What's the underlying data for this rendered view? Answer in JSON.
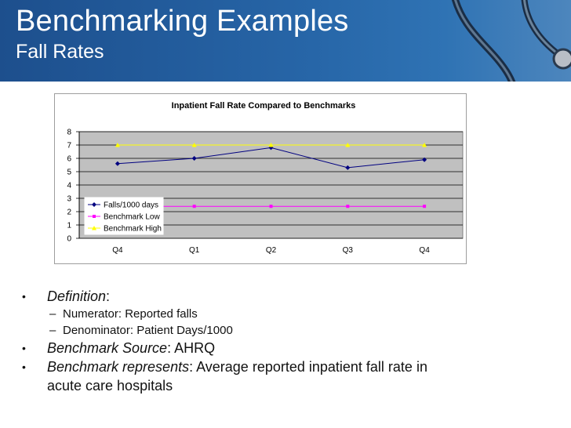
{
  "slide": {
    "title": "Benchmarking Examples",
    "subtitle": "Fall Rates"
  },
  "colors": {
    "header": "#2766a8",
    "plot_background": "#c0c0c0",
    "series_falls": "#000080",
    "series_low": "#ff00ff",
    "series_high": "#ffff00"
  },
  "chart_data": {
    "type": "line",
    "title": "Inpatient Fall Rate Compared to Benchmarks",
    "categories": [
      "Q4",
      "Q1",
      "Q2",
      "Q3",
      "Q4"
    ],
    "y_ticks": [
      "0",
      "1",
      "2",
      "3",
      "4",
      "5",
      "6",
      "7",
      "8"
    ],
    "ylim": [
      0,
      8
    ],
    "grid": true,
    "legend_placement": "bottom-left",
    "series": [
      {
        "name": "Falls/1000 days",
        "marker": "diamond",
        "values": [
          5.6,
          6.0,
          6.8,
          5.3,
          5.9
        ]
      },
      {
        "name": "Benchmark Low",
        "marker": "square",
        "values": [
          2.4,
          2.4,
          2.4,
          2.4,
          2.4
        ]
      },
      {
        "name": "Benchmark High",
        "marker": "triangle",
        "values": [
          7.0,
          7.0,
          7.0,
          7.0,
          7.0
        ]
      }
    ]
  },
  "bullets": [
    {
      "level": 1,
      "label": "Definition",
      "text": ":"
    },
    {
      "level": 2,
      "text": "Numerator: Reported falls"
    },
    {
      "level": 2,
      "text": "Denominator: Patient Days/1000"
    },
    {
      "level": 1,
      "label": "Benchmark Source",
      "text": ": AHRQ"
    },
    {
      "level": 1,
      "label": "Benchmark represents",
      "text": ": Average reported inpatient fall rate in"
    },
    {
      "level": 0,
      "text": "acute care hospitals"
    }
  ],
  "bullet_glyph": "•",
  "dash_glyph": "–"
}
